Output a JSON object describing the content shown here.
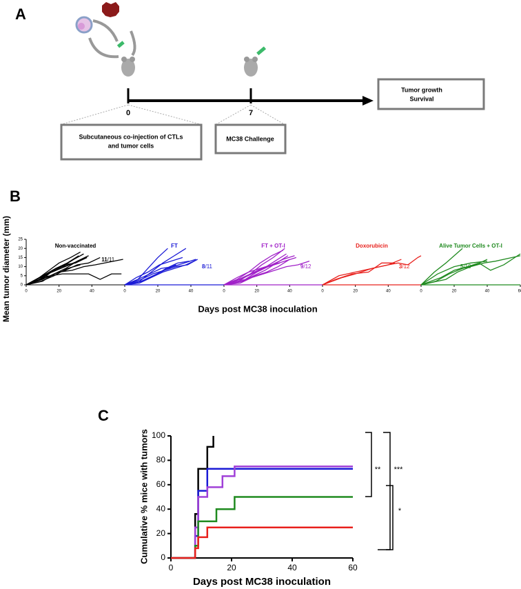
{
  "panel_a": {
    "label": "A",
    "timeline_start": "0",
    "timeline_mark": "7",
    "box_injection": [
      "Subcutaneous co-injection of CTLs",
      "and tumor cells"
    ],
    "box_challenge": "MC38 Challenge",
    "box_outcome": [
      "Tumor growth",
      "Survival"
    ]
  },
  "panel_b": {
    "label": "B",
    "ylabel": "Mean tumor diameter (mm)",
    "xlabel": "Days post MC38 inoculation"
  },
  "chart_data": [
    {
      "type": "line",
      "title": "Non-vaccinated",
      "annotation": [
        "11",
        "/11"
      ],
      "color": "#000000",
      "xlim": [
        0,
        60
      ],
      "ylim": [
        0,
        25
      ],
      "xticks": [
        0,
        20,
        40
      ],
      "yticks": [
        0,
        5,
        10,
        15,
        20,
        25
      ],
      "series": [
        {
          "x": [
            0,
            8,
            15,
            22,
            29,
            35
          ],
          "values": [
            0,
            3,
            7,
            10,
            14,
            17
          ]
        },
        {
          "x": [
            0,
            8,
            14,
            20,
            27,
            33
          ],
          "values": [
            0,
            4,
            8,
            12,
            15,
            18
          ]
        },
        {
          "x": [
            0,
            10,
            17,
            24,
            31,
            38
          ],
          "values": [
            0,
            2,
            6,
            9,
            13,
            16
          ]
        },
        {
          "x": [
            0,
            9,
            16,
            23,
            30,
            37
          ],
          "values": [
            0,
            3,
            8,
            11,
            12,
            15
          ]
        },
        {
          "x": [
            0,
            11,
            18,
            25,
            32
          ],
          "values": [
            0,
            4,
            9,
            12,
            16
          ]
        },
        {
          "x": [
            0,
            10,
            17,
            24,
            31,
            38,
            45
          ],
          "values": [
            0,
            3,
            6,
            8,
            11,
            12,
            15
          ]
        },
        {
          "x": [
            0,
            12,
            20,
            28,
            35,
            42,
            59
          ],
          "values": [
            0,
            4,
            7,
            8,
            10,
            11,
            14
          ]
        },
        {
          "x": [
            0,
            8,
            15,
            22,
            30,
            38,
            45,
            52,
            58
          ],
          "values": [
            0,
            4,
            5,
            6,
            6,
            6,
            3,
            6,
            6
          ]
        },
        {
          "x": [
            0,
            10,
            18,
            26,
            34
          ],
          "values": [
            0,
            5,
            9,
            11,
            14
          ]
        },
        {
          "x": [
            0,
            9,
            17,
            25,
            33
          ],
          "values": [
            0,
            2,
            5,
            9,
            11
          ]
        },
        {
          "x": [
            0,
            13,
            21,
            29,
            37
          ],
          "values": [
            0,
            6,
            9,
            12,
            15
          ]
        }
      ]
    },
    {
      "type": "line",
      "title": "FT",
      "annotation": [
        "8",
        "/11"
      ],
      "color": "#1a1ad6",
      "xlim": [
        0,
        60
      ],
      "ylim": [
        0,
        25
      ],
      "xticks": [
        0,
        20,
        40
      ],
      "series": [
        {
          "x": [
            0,
            8,
            14,
            20,
            26
          ],
          "values": [
            0,
            3,
            9,
            15,
            20
          ]
        },
        {
          "x": [
            0,
            9,
            16,
            23,
            30,
            37
          ],
          "values": [
            0,
            2,
            7,
            12,
            16,
            20
          ]
        },
        {
          "x": [
            0,
            10,
            17,
            24,
            31,
            38,
            44
          ],
          "values": [
            0,
            2,
            5,
            8,
            10,
            11,
            14
          ]
        },
        {
          "x": [
            0,
            8,
            15,
            22,
            29,
            36,
            43
          ],
          "values": [
            0,
            3,
            6,
            9,
            10,
            12,
            14
          ]
        },
        {
          "x": [
            0,
            7,
            14,
            21,
            28,
            35
          ],
          "values": [
            0,
            4,
            7,
            11,
            13,
            15
          ]
        },
        {
          "x": [
            0,
            9,
            16,
            23,
            30,
            37,
            44
          ],
          "values": [
            0,
            1,
            4,
            7,
            9,
            11,
            14
          ]
        },
        {
          "x": [
            0,
            10,
            17,
            24,
            31
          ],
          "values": [
            0,
            3,
            6,
            8,
            11
          ]
        },
        {
          "x": [
            0,
            11,
            18,
            25,
            32,
            39
          ],
          "values": [
            0,
            2,
            5,
            9,
            12,
            13
          ]
        },
        {
          "x": [
            0,
            60
          ],
          "values": [
            0,
            0
          ]
        }
      ]
    },
    {
      "type": "line",
      "title": "FT + OT-I",
      "annotation": [
        "9",
        "/12"
      ],
      "color": "#a020c8",
      "xlim": [
        0,
        60
      ],
      "ylim": [
        0,
        25
      ],
      "xticks": [
        0,
        20,
        40
      ],
      "series": [
        {
          "x": [
            0,
            8,
            15,
            22,
            29,
            36
          ],
          "values": [
            0,
            3,
            7,
            12,
            16,
            19
          ]
        },
        {
          "x": [
            0,
            9,
            16,
            23,
            30,
            37
          ],
          "values": [
            0,
            2,
            6,
            11,
            15,
            20
          ]
        },
        {
          "x": [
            0,
            10,
            17,
            24,
            31,
            38
          ],
          "values": [
            0,
            3,
            6,
            9,
            13,
            17
          ]
        },
        {
          "x": [
            0,
            8,
            15,
            22,
            29,
            36,
            43
          ],
          "values": [
            0,
            4,
            7,
            9,
            11,
            14,
            16
          ]
        },
        {
          "x": [
            0,
            11,
            18,
            25,
            32,
            39
          ],
          "values": [
            0,
            2,
            5,
            8,
            12,
            16
          ]
        },
        {
          "x": [
            0,
            9,
            16,
            23,
            30,
            37,
            44
          ],
          "values": [
            0,
            3,
            6,
            9,
            11,
            13,
            15
          ]
        },
        {
          "x": [
            0,
            12,
            19,
            26,
            33,
            40
          ],
          "values": [
            0,
            2,
            5,
            7,
            10,
            14
          ]
        },
        {
          "x": [
            0,
            10,
            17,
            24,
            31,
            38,
            45,
            52
          ],
          "values": [
            0,
            1,
            4,
            6,
            8,
            10,
            11,
            13
          ]
        },
        {
          "x": [
            0,
            13,
            20,
            27,
            34
          ],
          "values": [
            0,
            3,
            7,
            10,
            12
          ]
        },
        {
          "x": [
            0,
            60
          ],
          "values": [
            0,
            0
          ]
        }
      ]
    },
    {
      "type": "line",
      "title": "Doxorubicin",
      "annotation": [
        "3",
        "/12"
      ],
      "color": "#e8201c",
      "xlim": [
        0,
        60
      ],
      "ylim": [
        0,
        25
      ],
      "xticks": [
        0,
        20,
        40
      ],
      "series": [
        {
          "x": [
            0,
            10,
            20,
            30,
            40,
            46,
            52,
            58,
            60
          ],
          "values": [
            0,
            5,
            7,
            9,
            11,
            12,
            11,
            15,
            16
          ]
        },
        {
          "x": [
            0,
            12,
            20,
            30,
            40,
            48
          ],
          "values": [
            0,
            4,
            6,
            9,
            11,
            14
          ]
        },
        {
          "x": [
            0,
            8,
            18,
            28,
            36,
            44
          ],
          "values": [
            0,
            3,
            6,
            7,
            12,
            12
          ]
        },
        {
          "x": [
            0,
            60
          ],
          "values": [
            0,
            0
          ]
        }
      ]
    },
    {
      "type": "line",
      "title": "Alive Tumor Cells + OT-I",
      "annotation": [
        "5",
        "/10"
      ],
      "color": "#1f8a1f",
      "xlim": [
        0,
        60
      ],
      "ylim": [
        0,
        25
      ],
      "xticks": [
        0,
        20,
        40,
        60
      ],
      "series": [
        {
          "x": [
            0,
            8,
            15,
            25
          ],
          "values": [
            0,
            7,
            12,
            20
          ]
        },
        {
          "x": [
            0,
            10,
            20,
            30,
            40
          ],
          "values": [
            0,
            6,
            10,
            12,
            13
          ]
        },
        {
          "x": [
            0,
            12,
            20,
            28,
            35,
            42,
            50,
            60
          ],
          "values": [
            0,
            4,
            8,
            10,
            12,
            8,
            11,
            17
          ]
        },
        {
          "x": [
            0,
            15,
            22,
            30,
            38,
            45,
            55,
            60
          ],
          "values": [
            0,
            3,
            7,
            10,
            12,
            13,
            15,
            16
          ]
        },
        {
          "x": [
            0,
            9,
            17,
            25,
            33,
            40
          ],
          "values": [
            0,
            2,
            6,
            9,
            11,
            14
          ]
        },
        {
          "x": [
            0,
            60
          ],
          "values": [
            0,
            0
          ]
        }
      ]
    },
    {
      "type": "step",
      "panel_label": "C",
      "ylabel": "Cumulative % mice with tumors",
      "xlabel": "Days post MC38 inoculation",
      "xlim": [
        0,
        60
      ],
      "ylim": [
        0,
        100
      ],
      "xticks": [
        0,
        20,
        40,
        60
      ],
      "yticks": [
        0,
        20,
        40,
        60,
        80,
        100
      ],
      "significance": [
        "**",
        "***",
        "*"
      ],
      "series": [
        {
          "color": "#000000",
          "x": [
            0,
            8,
            9,
            12,
            14
          ],
          "values": [
            0,
            36,
            73,
            91,
            100
          ]
        },
        {
          "color": "#1a1ad6",
          "x": [
            0,
            8,
            9,
            12,
            60
          ],
          "values": [
            0,
            18,
            55,
            73,
            73
          ]
        },
        {
          "color": "#a040d8",
          "x": [
            0,
            8,
            9,
            12,
            17,
            21,
            60
          ],
          "values": [
            0,
            25,
            50,
            58,
            67,
            75,
            75
          ]
        },
        {
          "color": "#1f8a1f",
          "x": [
            0,
            8,
            9,
            15,
            21,
            60
          ],
          "values": [
            0,
            10,
            30,
            40,
            50,
            50
          ]
        },
        {
          "color": "#e8201c",
          "x": [
            0,
            8,
            9,
            12,
            60
          ],
          "values": [
            0,
            8,
            17,
            25,
            25
          ]
        }
      ]
    }
  ]
}
